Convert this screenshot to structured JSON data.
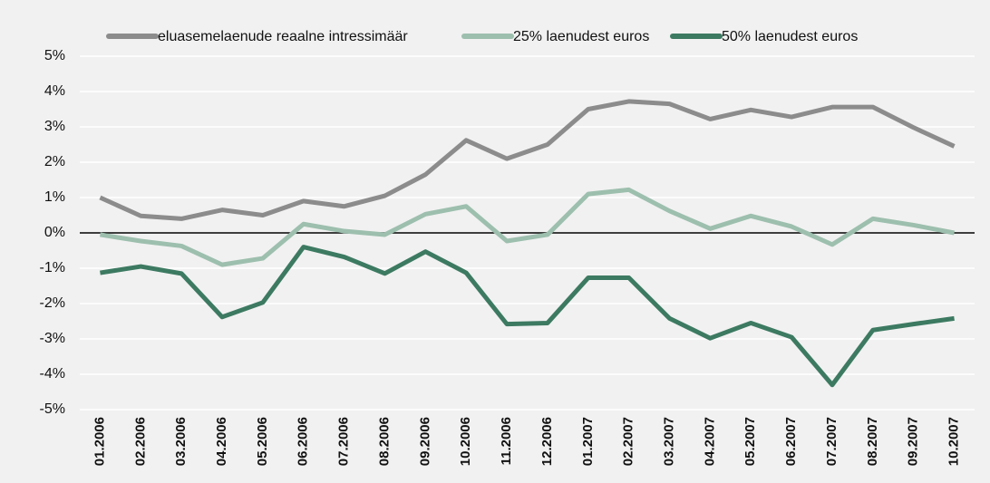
{
  "chart_data": {
    "type": "line",
    "categories": [
      "01.2006",
      "02.2006",
      "03.2006",
      "04.2006",
      "05.2006",
      "06.2006",
      "07.2006",
      "08.2006",
      "09.2006",
      "10.2006",
      "11.2006",
      "12.2006",
      "01.2007",
      "02.2007",
      "03.2007",
      "04.2007",
      "05.2007",
      "06.2007",
      "07.2007",
      "08.2007",
      "09.2007",
      "10.2007"
    ],
    "series": [
      {
        "name": "eluasemelaenude reaalne intressimäär",
        "color": "#8c8c8c",
        "values": [
          1.0,
          0.48,
          0.4,
          0.65,
          0.5,
          0.9,
          0.75,
          1.05,
          1.65,
          2.62,
          2.1,
          2.5,
          3.5,
          3.72,
          3.65,
          3.22,
          3.48,
          3.28,
          3.56,
          3.56,
          2.98,
          2.45
        ]
      },
      {
        "name": "25% laenudest euros",
        "color": "#9dbfae",
        "values": [
          -0.05,
          -0.23,
          -0.37,
          -0.9,
          -0.72,
          0.25,
          0.05,
          -0.05,
          0.53,
          0.75,
          -0.23,
          -0.05,
          1.1,
          1.22,
          0.62,
          0.12,
          0.48,
          0.18,
          -0.33,
          0.4,
          0.22,
          0
        ]
      },
      {
        "name": "50% laenudest euros",
        "color": "#3d7a62",
        "values": [
          -1.13,
          -0.95,
          -1.15,
          -2.38,
          -1.97,
          -0.4,
          -0.68,
          -1.15,
          -0.53,
          -1.13,
          -2.58,
          -2.55,
          -1.27,
          -1.27,
          -2.42,
          -2.98,
          -2.55,
          -2.95,
          -4.3,
          -2.75,
          -2.58,
          -2.42
        ]
      }
    ],
    "ylim": [
      -5,
      5
    ],
    "yticks": [
      {
        "value": -5,
        "label": "-5%"
      },
      {
        "value": -4,
        "label": "-4%"
      },
      {
        "value": -3,
        "label": "-3%"
      },
      {
        "value": -2,
        "label": "-2%"
      },
      {
        "value": -1,
        "label": "-1%"
      },
      {
        "value": 0,
        "label": "0%"
      },
      {
        "value": 1,
        "label": "1%"
      },
      {
        "value": 2,
        "label": "2%"
      },
      {
        "value": 3,
        "label": "3%"
      },
      {
        "value": 4,
        "label": "4%"
      },
      {
        "value": 5,
        "label": "5%"
      }
    ],
    "grid": true,
    "legend": "top"
  }
}
